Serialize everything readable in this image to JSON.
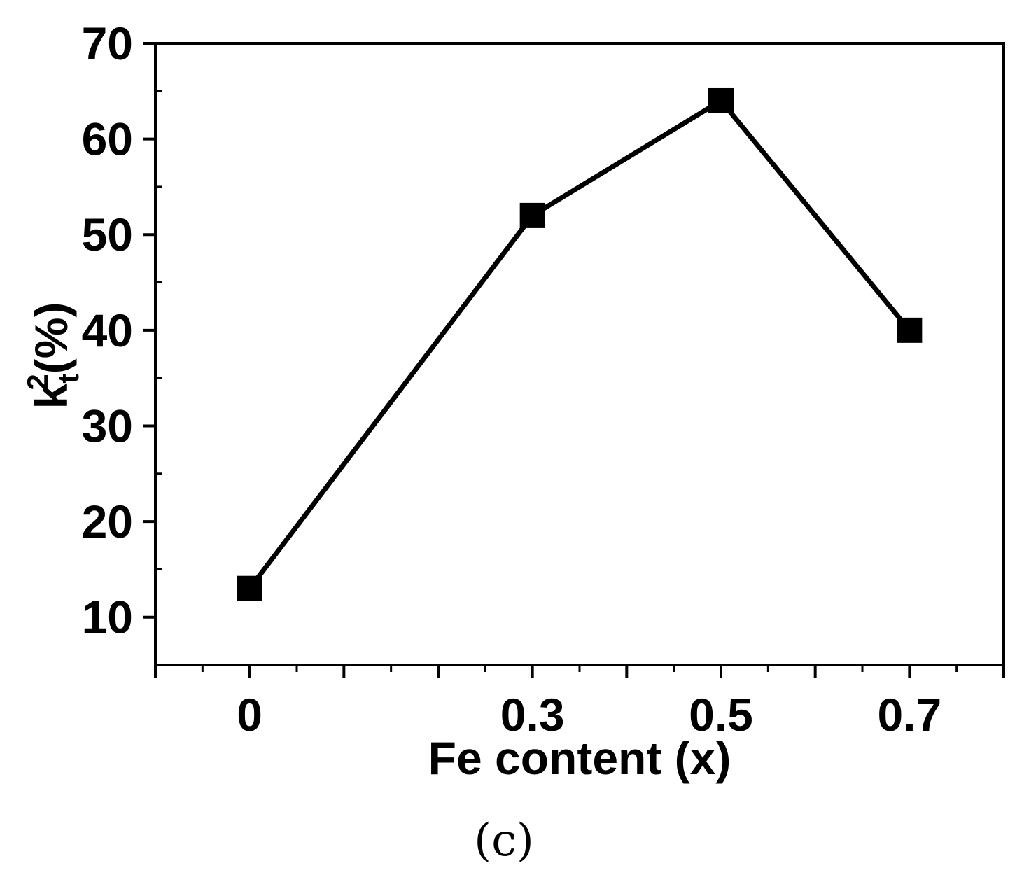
{
  "chart_data": {
    "type": "line",
    "title": "",
    "xlabel": "Fe content (x)",
    "ylabel": {
      "base": "k",
      "subscript": "t",
      "superscript": "2",
      "suffix": "(%)"
    },
    "x_tick_labels": [
      "0",
      "0.3",
      "0.5",
      "0.7"
    ],
    "y_tick_labels": [
      "10",
      "20",
      "30",
      "40",
      "50",
      "60",
      "70"
    ],
    "x_ticks": [
      0,
      0.3,
      0.5,
      0.7
    ],
    "y_ticks": [
      10,
      20,
      30,
      40,
      50,
      60,
      70
    ],
    "xlim": [
      -0.1,
      0.8
    ],
    "ylim": [
      5,
      70
    ],
    "series": [
      {
        "x": [
          0,
          0.3,
          0.5,
          0.7
        ],
        "y": [
          13,
          52,
          64,
          40
        ],
        "marker": "square",
        "color": "#000000"
      }
    ],
    "grid": false,
    "legend": "none"
  },
  "panel_label": "(c)"
}
